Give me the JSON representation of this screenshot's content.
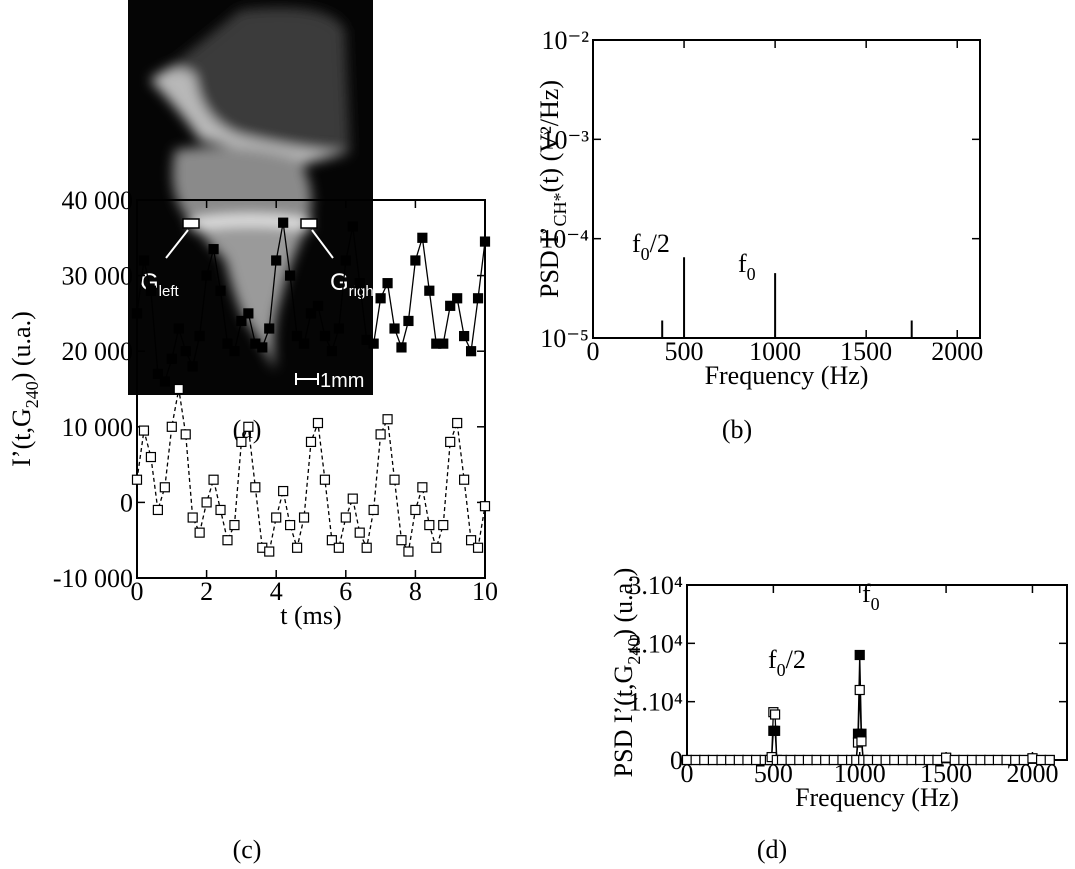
{
  "image_panel": {
    "labels": [
      {
        "text": "G",
        "sub": "left"
      },
      {
        "text": "G",
        "sub": "right"
      }
    ],
    "scale_bar": "1mm",
    "caption": "(a)"
  },
  "chart_data": [
    {
      "type": "bar",
      "caption": "(b)",
      "log_y": true,
      "color": "#000000",
      "xlabel": "Frequency (Hz)",
      "ylabel": {
        "text": "PSD I’",
        "sub": "CH*",
        "rest": "(t) (V²/Hz)"
      },
      "x": [
        380,
        500,
        1000,
        1750
      ],
      "values": [
        1.5e-05,
        6.5e-05,
        4.5e-05,
        1.5e-05
      ],
      "annotations": [
        {
          "text": "f",
          "sub": "0",
          "rest": "/2"
        },
        {
          "text": "f",
          "sub": "0"
        }
      ],
      "xlim": [
        0,
        2125
      ],
      "xticks": [
        0,
        500,
        1000,
        1500,
        2000
      ],
      "ylim": [
        1e-05,
        0.01
      ],
      "yticks": [
        {
          "value": 1e-05,
          "label": "10⁻⁵"
        },
        {
          "value": 0.0001,
          "label": "10⁻⁴"
        },
        {
          "value": 0.001,
          "label": "10⁻³"
        },
        {
          "value": 0.01,
          "label": "10⁻²"
        }
      ]
    },
    {
      "type": "line",
      "caption": "(c)",
      "xlabel": "t (ms)",
      "ylabel": {
        "text": "I’(t,G",
        "sub": "240",
        "rest": ") (u.a.)"
      },
      "x": [
        0,
        0.2,
        0.4,
        0.6,
        0.8,
        1,
        1.2,
        1.4,
        1.6,
        1.8,
        2,
        2.2,
        2.4,
        2.6,
        2.8,
        3,
        3.2,
        3.4,
        3.6,
        3.8,
        4,
        4.2,
        4.4,
        4.6,
        4.8,
        5,
        5.2,
        5.4,
        5.6,
        5.8,
        6,
        6.2,
        6.4,
        6.6,
        6.8,
        7,
        7.2,
        7.4,
        7.6,
        7.8,
        8,
        8.2,
        8.4,
        8.6,
        8.8,
        9,
        9.2,
        9.4,
        9.6,
        9.8,
        10
      ],
      "series": [
        {
          "color": "#000000",
          "marker": "filled",
          "dash": false,
          "values": [
            25000,
            32000,
            28000,
            17000,
            16000,
            19000,
            23000,
            20000,
            18000,
            22000,
            30000,
            33500,
            28000,
            21000,
            20000,
            24000,
            25000,
            21000,
            20500,
            23000,
            32000,
            37000,
            30000,
            22000,
            21000,
            25000,
            26000,
            22000,
            20000,
            23000,
            32000,
            36500,
            29000,
            21500,
            21000,
            27000,
            29000,
            23000,
            20500,
            24000,
            32000,
            35000,
            28000,
            21000,
            21000,
            26000,
            27000,
            22000,
            20000,
            27000,
            34500
          ]
        },
        {
          "color": "#000000",
          "marker": "open",
          "dash": true,
          "values": [
            3000,
            9500,
            6000,
            -1000,
            2000,
            10000,
            15000,
            9000,
            -2000,
            -4000,
            0,
            3000,
            -1000,
            -5000,
            -3000,
            8000,
            10000,
            2000,
            -6000,
            -6500,
            -2000,
            1500,
            -3000,
            -6000,
            -2000,
            8000,
            10500,
            3000,
            -5000,
            -6000,
            -2000,
            500,
            -4000,
            -6000,
            -1000,
            9000,
            11000,
            3000,
            -5000,
            -6500,
            -1000,
            2000,
            -3000,
            -6000,
            -3000,
            8000,
            10500,
            3000,
            -5000,
            -6000,
            -500
          ]
        }
      ],
      "xlim": [
        0,
        10
      ],
      "xticks": [
        0,
        2,
        4,
        6,
        8,
        10
      ],
      "ylim": [
        -10000,
        40000
      ],
      "yticks": [
        {
          "value": -10000,
          "label": "-10 000"
        },
        0,
        {
          "value": 10000,
          "label": "10 000"
        },
        {
          "value": 20000,
          "label": "20 000"
        },
        {
          "value": 30000,
          "label": "30 000"
        },
        {
          "value": 40000,
          "label": "40 000"
        }
      ]
    },
    {
      "type": "line",
      "caption": "(d)",
      "xlabel": "Frequency (Hz)",
      "ylabel": {
        "text": "PSD I’(t,G",
        "sub": "240",
        "rest": ") (u.a.)"
      },
      "annotations": [
        {
          "text": "f",
          "sub": "0",
          "rest": "/2"
        },
        {
          "text": "f",
          "sub": "0"
        }
      ],
      "x": [
        0,
        50,
        100,
        150,
        200,
        250,
        300,
        350,
        400,
        450,
        480,
        490,
        500,
        510,
        520,
        550,
        600,
        650,
        700,
        750,
        800,
        850,
        900,
        950,
        980,
        990,
        1000,
        1010,
        1020,
        1050,
        1100,
        1150,
        1200,
        1250,
        1300,
        1350,
        1400,
        1450,
        1500,
        1550,
        1600,
        1650,
        1700,
        1750,
        1800,
        1850,
        1900,
        1950,
        2000,
        2050,
        2100
      ],
      "series": [
        {
          "color": "#000000",
          "marker": "filled",
          "dash": false,
          "values": [
            0,
            0,
            0,
            0,
            0,
            0,
            0,
            0,
            0,
            0,
            0,
            200,
            5000,
            5000,
            0,
            0,
            0,
            0,
            0,
            0,
            0,
            0,
            0,
            0,
            0,
            4500,
            18000,
            4500,
            0,
            0,
            0,
            0,
            0,
            0,
            0,
            0,
            0,
            0,
            300,
            0,
            0,
            0,
            0,
            0,
            0,
            0,
            0,
            0,
            200,
            0,
            0
          ]
        },
        {
          "color": "#000000",
          "marker": "open",
          "dash": false,
          "values": [
            0,
            0,
            0,
            0,
            0,
            0,
            0,
            0,
            0,
            0,
            0,
            500,
            8200,
            7800,
            0,
            0,
            0,
            0,
            0,
            0,
            0,
            0,
            0,
            0,
            0,
            3000,
            12000,
            3200,
            0,
            0,
            0,
            0,
            0,
            0,
            0,
            0,
            0,
            0,
            400,
            0,
            0,
            0,
            0,
            0,
            0,
            0,
            0,
            0,
            300,
            0,
            0
          ]
        }
      ],
      "xlim": [
        0,
        2200
      ],
      "xticks": [
        0,
        500,
        1000,
        1500,
        2000
      ],
      "ylim": [
        0,
        30000
      ],
      "yticks": [
        0,
        {
          "value": 10000,
          "label": "1.10⁴"
        },
        {
          "value": 20000,
          "label": "2.10⁴"
        },
        {
          "value": 30000,
          "label": "3.10⁴"
        }
      ]
    }
  ]
}
